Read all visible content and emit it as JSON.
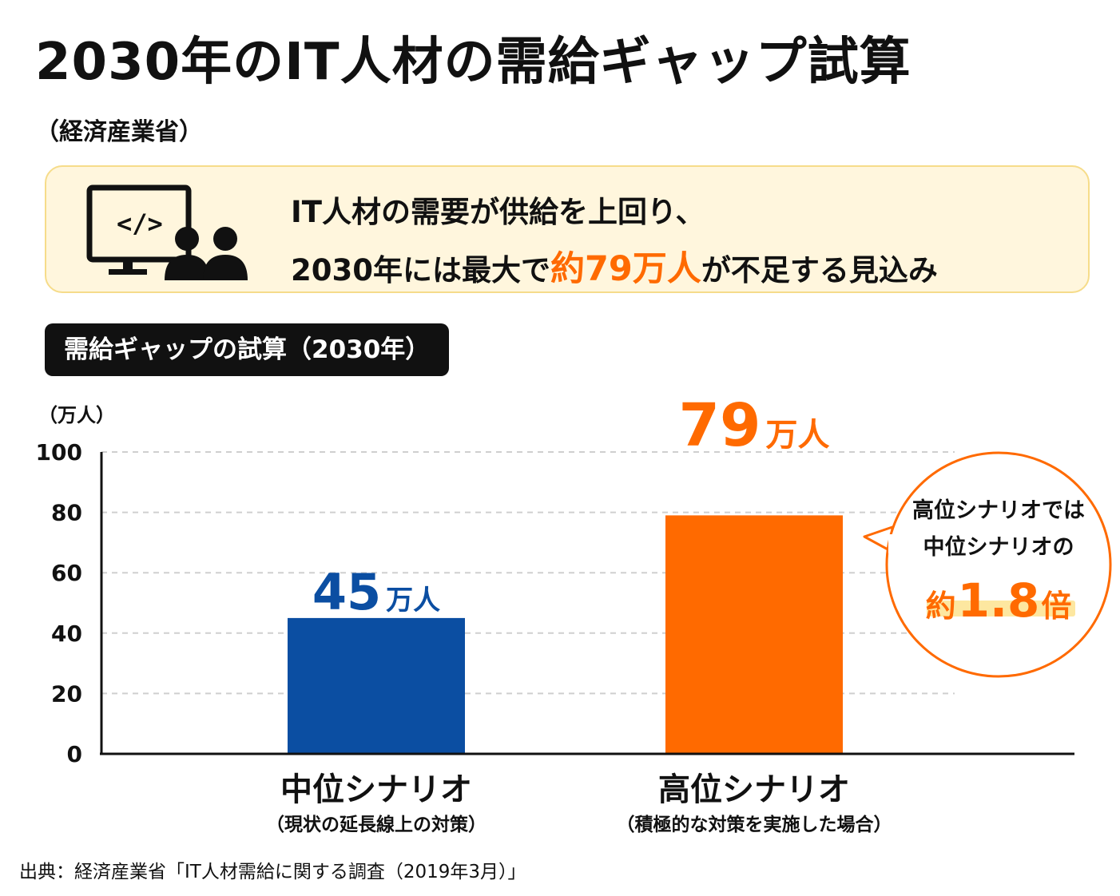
{
  "title": "2030年のIT人材の需給ギャップ試算",
  "subtitle": "（経済産業省）",
  "callout": {
    "line1": "IT人材の需要が供給を上回り、",
    "line2_pre": "2030年には最大で",
    "line2_highlight": "約79万人",
    "line2_post": "が不足する見込み",
    "icon": "computer-with-people-icon"
  },
  "chart_tag": "需給ギャップの試算（2030年）",
  "chart_data": {
    "type": "bar",
    "ylabel": "（万人）",
    "ylim": [
      0,
      100
    ],
    "yticks": [
      "0",
      "20",
      "40",
      "60",
      "80",
      "100"
    ],
    "grid": true,
    "categories": [
      "中位シナリオ",
      "高位シナリオ"
    ],
    "category_notes": [
      "（現状の延長線上の対策）",
      "（積極的な対策を実施した場合）"
    ],
    "values": [
      45,
      79
    ],
    "value_labels": [
      {
        "number": "45",
        "unit": "万人"
      },
      {
        "number": "79",
        "unit": "万人"
      }
    ],
    "colors": [
      "#0b4ea2",
      "#ff6a00"
    ],
    "annotation": {
      "line1": "高位シナリオでは",
      "line2": "中位シナリオの",
      "line3_prefix": "約",
      "line3_number": "1.8",
      "line3_suffix": "倍"
    }
  },
  "footer": "出典：経済産業省「IT人材需給に関する調査（2019年3月）」",
  "colors": {
    "accent": "#ff6a00",
    "blue": "#0b4ea2",
    "callout_bg": "#fff6dd"
  }
}
